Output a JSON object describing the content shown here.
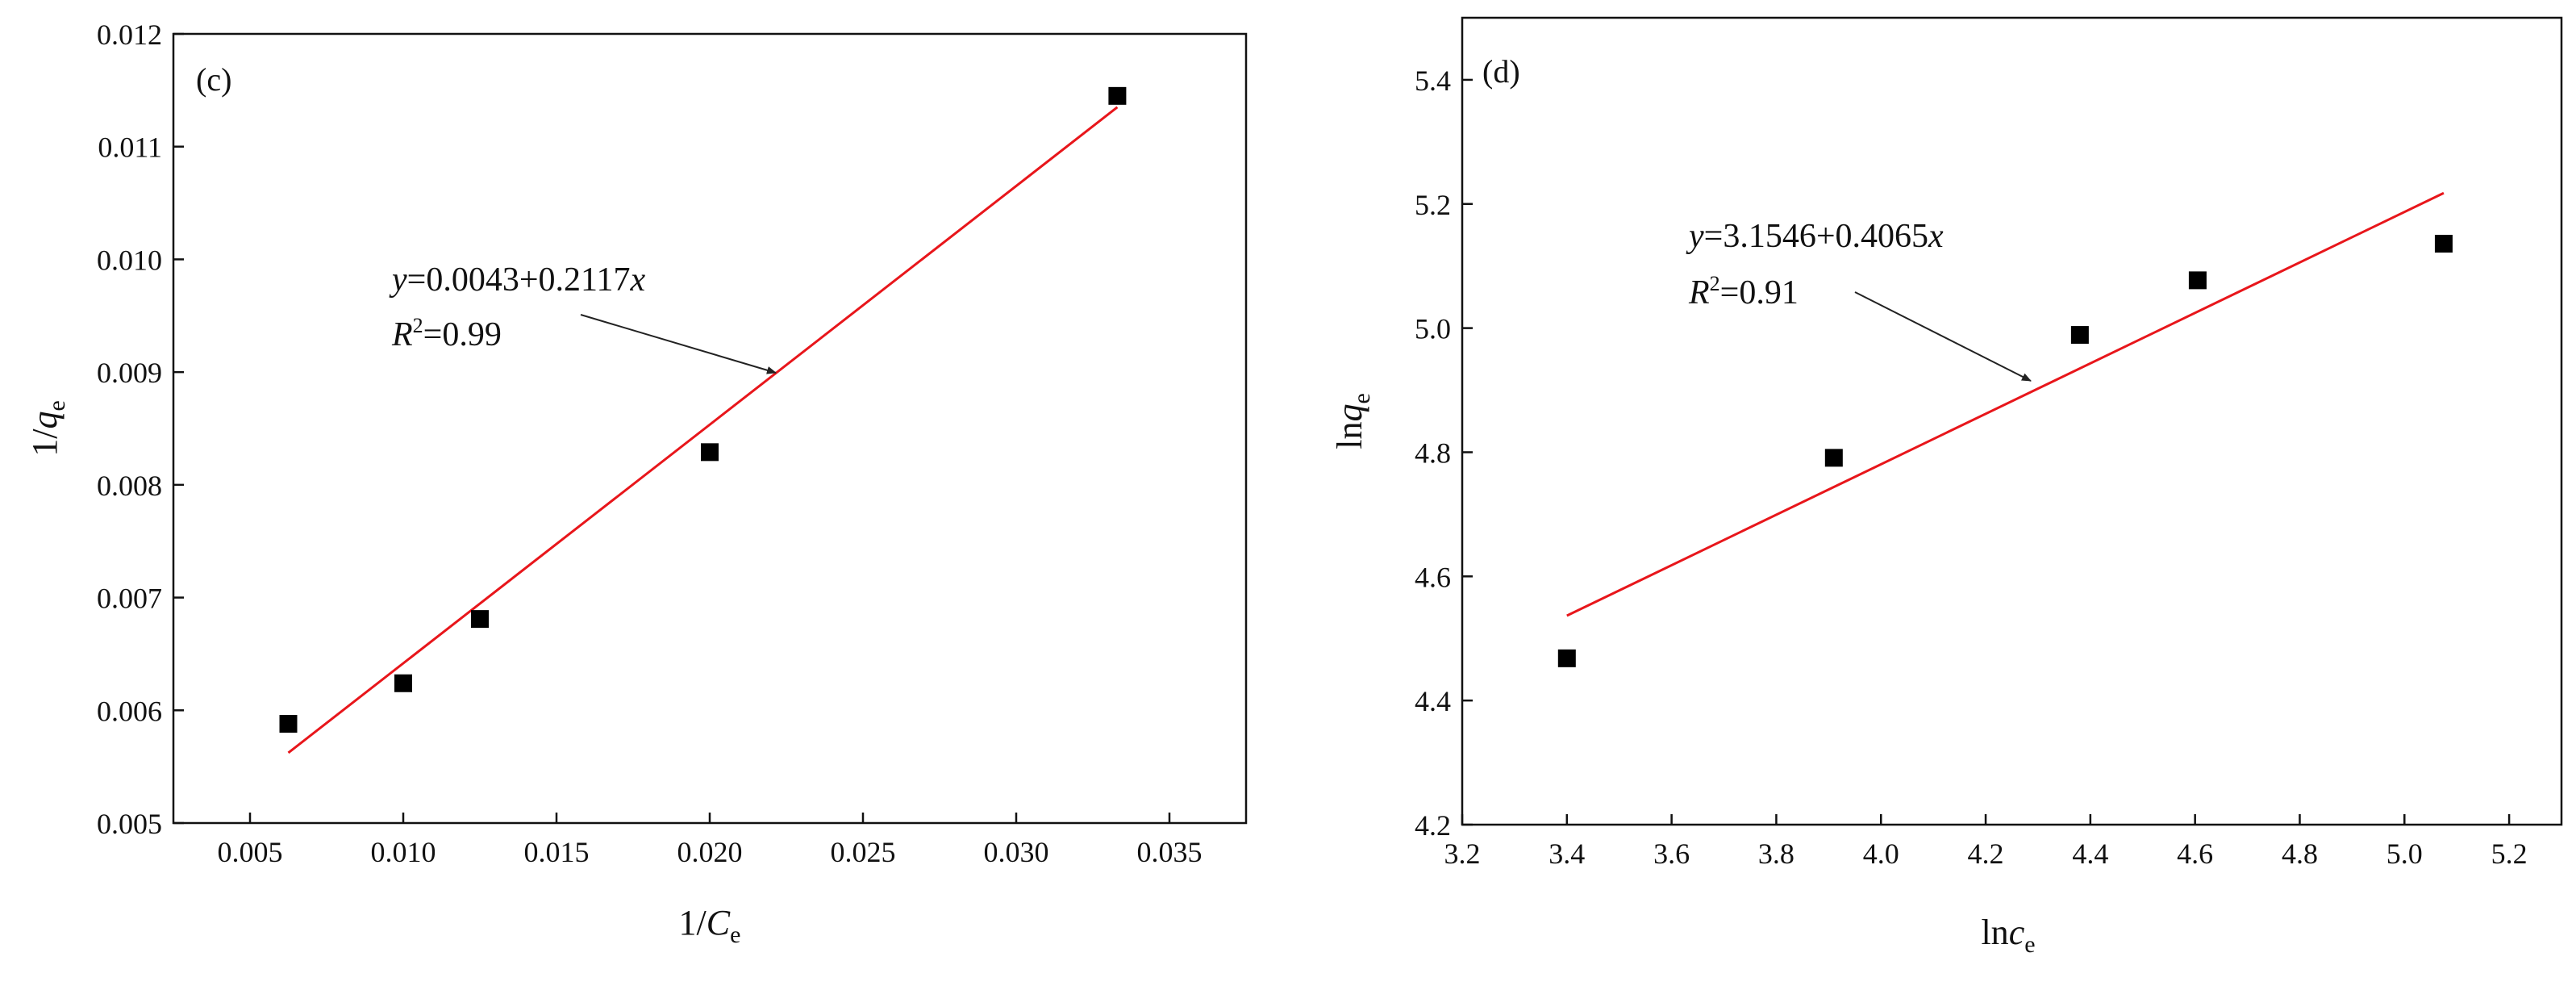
{
  "chart_data": [
    {
      "type": "scatter",
      "panel_label": "(c)",
      "xlabel": {
        "main": "1/",
        "italic": "C",
        "sub": "e"
      },
      "ylabel": {
        "main": "1/",
        "italic": "q",
        "sub": "e"
      },
      "xlim": [
        0.0025,
        0.0375
      ],
      "ylim": [
        0.005,
        0.012
      ],
      "xticks": [
        "0.005",
        "0.010",
        "0.015",
        "0.020",
        "0.025",
        "0.030",
        "0.035"
      ],
      "yticks": [
        "0.005",
        "0.006",
        "0.007",
        "0.008",
        "0.009",
        "0.010",
        "0.011",
        "0.012"
      ],
      "points": [
        {
          "x": 0.00625,
          "y": 0.00588
        },
        {
          "x": 0.01,
          "y": 0.00624
        },
        {
          "x": 0.0125,
          "y": 0.00681
        },
        {
          "x": 0.02,
          "y": 0.00829
        },
        {
          "x": 0.0333,
          "y": 0.01145
        }
      ],
      "fit_line": {
        "x_start": 0.00625,
        "x_end": 0.0333,
        "intercept": 0.0043,
        "slope": 0.2117,
        "color": "#e8161b"
      },
      "equation": {
        "y_var": "y",
        "text": "=0.0043+0.2117",
        "x_var": "x"
      },
      "r_squared": {
        "r": "R",
        "sup": "2",
        "text": "=0.99"
      },
      "grid": false
    },
    {
      "type": "scatter",
      "panel_label": "(d)",
      "xlabel": {
        "main": "ln",
        "italic": "c",
        "sub": "e"
      },
      "ylabel": {
        "main": "ln",
        "italic": "q",
        "sub": "e"
      },
      "xlim": [
        3.2,
        5.3
      ],
      "ylim": [
        4.2,
        5.5
      ],
      "xticks": [
        "3.2",
        "3.4",
        "3.6",
        "3.8",
        "4.0",
        "4.2",
        "4.4",
        "4.6",
        "4.8",
        "5.0",
        "5.2"
      ],
      "yticks": [
        "4.2",
        "4.4",
        "4.6",
        "4.8",
        "5.0",
        "5.2",
        "5.4"
      ],
      "points": [
        {
          "x": 3.4,
          "y": 4.468
        },
        {
          "x": 3.91,
          "y": 4.791
        },
        {
          "x": 4.38,
          "y": 4.989
        },
        {
          "x": 4.605,
          "y": 5.077
        },
        {
          "x": 5.075,
          "y": 5.136
        }
      ],
      "fit_line": {
        "x_start": 3.4,
        "x_end": 5.075,
        "intercept": 3.1546,
        "slope": 0.4065,
        "color": "#e8161b"
      },
      "equation": {
        "y_var": "y",
        "text": "=3.1546+0.4065",
        "x_var": "x"
      },
      "r_squared": {
        "r": "R",
        "sup": "2",
        "text": "=0.91"
      },
      "grid": false
    }
  ]
}
